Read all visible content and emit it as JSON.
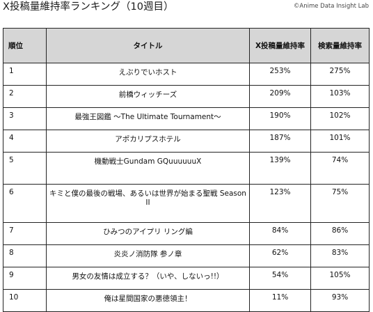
{
  "page": {
    "title": "X投稿量維持率ランキング（10週目）",
    "credit": "©Anime Data Insight Lab"
  },
  "table": {
    "headers": {
      "rank": "順位",
      "title": "タイトル",
      "x_retention": "X投稿量維持率",
      "search_retention": "検索量維持率"
    },
    "rows": [
      {
        "rank": "1",
        "title": "えぶりでいホスト",
        "x_retention": "253%",
        "search_retention": "275%"
      },
      {
        "rank": "2",
        "title": "前橋ウィッチーズ",
        "x_retention": "209%",
        "search_retention": "103%"
      },
      {
        "rank": "3",
        "title": "最強王図鑑 〜The Ultimate Tournament〜",
        "x_retention": "190%",
        "search_retention": "102%"
      },
      {
        "rank": "4",
        "title": "アポカリプスホテル",
        "x_retention": "187%",
        "search_retention": "101%"
      },
      {
        "rank": "5",
        "title": "機動戦士Gundam GQuuuuuuX",
        "x_retention": "139%",
        "search_retention": "74%"
      },
      {
        "rank": "6",
        "title": "キミと僕の最後の戦場、あるいは世界が始まる聖戦 Season II",
        "x_retention": "123%",
        "search_retention": "75%"
      },
      {
        "rank": "7",
        "title": "ひみつのアイプリ リング編",
        "x_retention": "84%",
        "search_retention": "86%"
      },
      {
        "rank": "8",
        "title": "炎炎ノ消防隊 参ノ章",
        "x_retention": "62%",
        "search_retention": "83%"
      },
      {
        "rank": "9",
        "title": "男女の友情は成立する？（いや、しないっ!!）",
        "x_retention": "54%",
        "search_retention": "105%"
      },
      {
        "rank": "10",
        "title": "俺は星間国家の悪徳領主！",
        "x_retention": "11%",
        "search_retention": "93%"
      }
    ]
  }
}
